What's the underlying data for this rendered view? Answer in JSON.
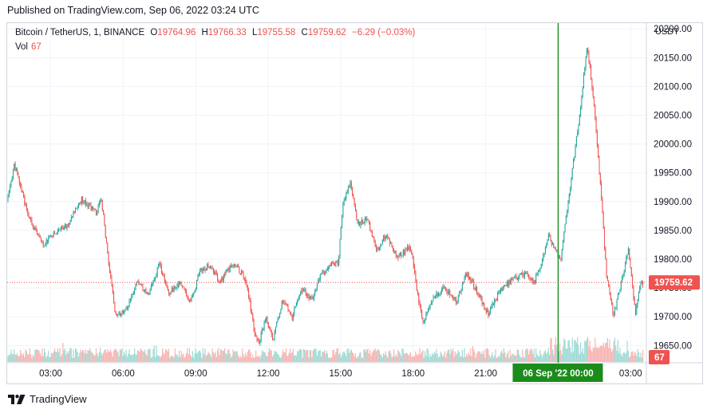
{
  "header": {
    "published": "Published on TradingView.com, Sep 06, 2022 03:24 UTC"
  },
  "legend": {
    "symbol": "Bitcoin / TetherUS, 1, BINANCE",
    "open_label": "O",
    "open": "19764.96",
    "high_label": "H",
    "high": "19766.33",
    "low_label": "L",
    "low": "19755.58",
    "close_label": "C",
    "close": "19759.62",
    "change": "−6.29 (−0.03%)",
    "vol_label": "Vol",
    "vol": "67"
  },
  "axis": {
    "currency": "USDT"
  },
  "footer": {
    "brand": "TradingView"
  },
  "colors": {
    "up": "#26a69a",
    "down": "#ef5350",
    "crosshair": "#1b8c1b",
    "grid": "#f0f3fa",
    "border": "#d1d4dc"
  },
  "chart_data": {
    "type": "candlestick",
    "symbol": "Bitcoin / TetherUS",
    "interval": "1",
    "exchange": "BINANCE",
    "currency": "USDT",
    "ylim": [
      19620,
      20210
    ],
    "y_ticks": [
      19650,
      19700,
      19750,
      19800,
      19850,
      19900,
      19950,
      20000,
      20050,
      20100,
      20150,
      20200
    ],
    "y_tick_labels": [
      "19650.00",
      "19700.00",
      "19750.00",
      "19800.00",
      "19850.00",
      "19900.00",
      "19950.00",
      "20000.00",
      "20050.00",
      "20100.00",
      "20150.00",
      "20200.00"
    ],
    "time_range_hours": [
      1.2,
      3.65
    ],
    "x_ticks": [
      3,
      6,
      9,
      12,
      15,
      18,
      21,
      24,
      27
    ],
    "x_tick_labels": [
      "03:00",
      "06:00",
      "09:00",
      "12:00",
      "15:00",
      "18:00",
      "21:00",
      "00:00",
      "03:00"
    ],
    "crosshair": {
      "hour": 24,
      "label": "06 Sep '22   00:00"
    },
    "last_price": 19759.62,
    "last_price_label": "19759.62",
    "last_volume": 67,
    "last_volume_label": "67",
    "price_path": [
      [
        1.2,
        19900
      ],
      [
        1.5,
        19965
      ],
      [
        2.1,
        19870
      ],
      [
        2.7,
        19825
      ],
      [
        3.2,
        19845
      ],
      [
        3.7,
        19860
      ],
      [
        4.3,
        19905
      ],
      [
        4.9,
        19880
      ],
      [
        5.1,
        19905
      ],
      [
        5.4,
        19790
      ],
      [
        5.7,
        19700
      ],
      [
        6.1,
        19710
      ],
      [
        6.6,
        19765
      ],
      [
        7.0,
        19735
      ],
      [
        7.5,
        19790
      ],
      [
        7.9,
        19740
      ],
      [
        8.3,
        19760
      ],
      [
        8.8,
        19725
      ],
      [
        9.2,
        19780
      ],
      [
        9.6,
        19790
      ],
      [
        10.0,
        19760
      ],
      [
        10.6,
        19795
      ],
      [
        11.1,
        19760
      ],
      [
        11.4,
        19680
      ],
      [
        11.6,
        19650
      ],
      [
        11.9,
        19700
      ],
      [
        12.2,
        19660
      ],
      [
        12.6,
        19730
      ],
      [
        13.0,
        19700
      ],
      [
        13.4,
        19750
      ],
      [
        13.8,
        19730
      ],
      [
        14.2,
        19775
      ],
      [
        14.6,
        19790
      ],
      [
        14.9,
        19795
      ],
      [
        15.1,
        19895
      ],
      [
        15.4,
        19935
      ],
      [
        15.7,
        19860
      ],
      [
        16.1,
        19870
      ],
      [
        16.5,
        19815
      ],
      [
        16.9,
        19845
      ],
      [
        17.3,
        19805
      ],
      [
        17.9,
        19820
      ],
      [
        18.1,
        19760
      ],
      [
        18.4,
        19690
      ],
      [
        18.8,
        19730
      ],
      [
        19.3,
        19750
      ],
      [
        19.8,
        19725
      ],
      [
        20.2,
        19775
      ],
      [
        20.7,
        19740
      ],
      [
        21.1,
        19705
      ],
      [
        21.6,
        19745
      ],
      [
        22.1,
        19765
      ],
      [
        22.6,
        19775
      ],
      [
        23.0,
        19760
      ],
      [
        23.3,
        19790
      ],
      [
        23.6,
        19840
      ],
      [
        24.1,
        19800
      ],
      [
        24.5,
        19925
      ],
      [
        24.9,
        20055
      ],
      [
        25.2,
        20175
      ],
      [
        25.5,
        20060
      ],
      [
        25.8,
        19900
      ],
      [
        26.0,
        19770
      ],
      [
        26.3,
        19700
      ],
      [
        26.6,
        19760
      ],
      [
        26.9,
        19815
      ],
      [
        27.2,
        19705
      ],
      [
        27.4,
        19760
      ]
    ],
    "volume_range": [
      0,
      420
    ],
    "volume_level": 70
  }
}
